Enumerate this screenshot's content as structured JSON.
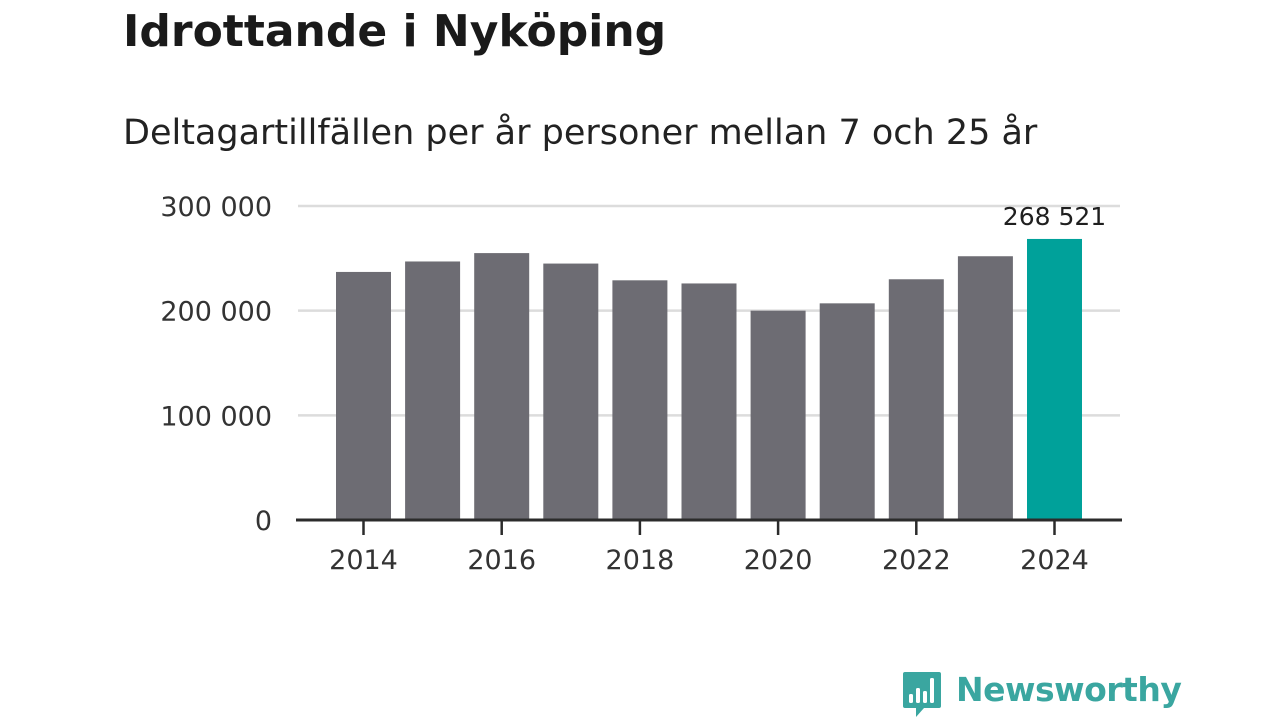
{
  "header": {
    "title": "Idrottande i Nyköping",
    "subtitle": "Deltagartillfällen per år personer mellan 7 och 25 år"
  },
  "colors": {
    "bar": "#6d6c73",
    "highlight": "#00a19a",
    "grid": "#dcdcdc",
    "axis": "#2b2b2b",
    "logo": "#3aa6a0"
  },
  "chart_data": {
    "type": "bar",
    "title": "",
    "xlabel": "",
    "ylabel": "",
    "categories": [
      "2014",
      "2015",
      "2016",
      "2017",
      "2018",
      "2019",
      "2020",
      "2021",
      "2022",
      "2023",
      "2024"
    ],
    "values": [
      237000,
      247000,
      255000,
      245000,
      229000,
      226000,
      200000,
      207000,
      230000,
      252000,
      268521
    ],
    "ylim": [
      0,
      300000
    ],
    "yticks": [
      0,
      100000,
      200000,
      300000
    ],
    "ytick_labels": [
      "0",
      "100 000",
      "200 000",
      "300 000"
    ],
    "xtick_labels": [
      "2014",
      "2016",
      "2018",
      "2020",
      "2022",
      "2024"
    ],
    "highlight_index": 10,
    "data_labels": [
      {
        "index": 10,
        "text": "268 521"
      }
    ],
    "grid": true,
    "legend": "none"
  },
  "branding": {
    "logo_text": "Newsworthy",
    "icon": "bar-chart-speech-bubble-icon"
  }
}
